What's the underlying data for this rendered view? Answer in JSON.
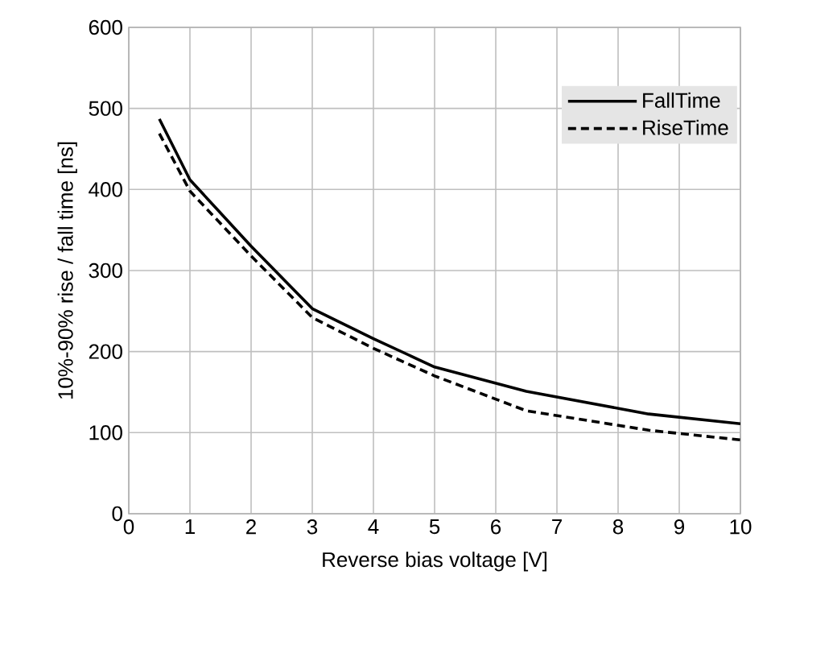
{
  "chart_data": {
    "type": "line",
    "xlabel": "Reverse bias voltage [V]",
    "ylabel": "10%-90% rise / fall time [ns]",
    "xlim": [
      0,
      10
    ],
    "ylim": [
      0,
      600
    ],
    "xticks": [
      0,
      1,
      2,
      3,
      4,
      5,
      6,
      7,
      8,
      9,
      10
    ],
    "yticks": [
      0,
      100,
      200,
      300,
      400,
      500,
      600
    ],
    "grid": true,
    "legend": "top right",
    "series": [
      {
        "name": "FallTime",
        "color": "#000000",
        "line_style": "solid",
        "x": [
          0.5,
          1,
          2,
          3,
          4,
          5,
          6.5,
          8.5,
          10
        ],
        "values": [
          487,
          412,
          330,
          253,
          216,
          181,
          151,
          123,
          111
        ]
      },
      {
        "name": "RiseTime",
        "color": "#000000",
        "line_style": "dashed",
        "x": [
          0.5,
          1,
          2,
          3,
          4,
          5,
          6.5,
          8.5,
          10
        ],
        "values": [
          469,
          398,
          318,
          242,
          204,
          170,
          127,
          103,
          91
        ]
      }
    ]
  }
}
